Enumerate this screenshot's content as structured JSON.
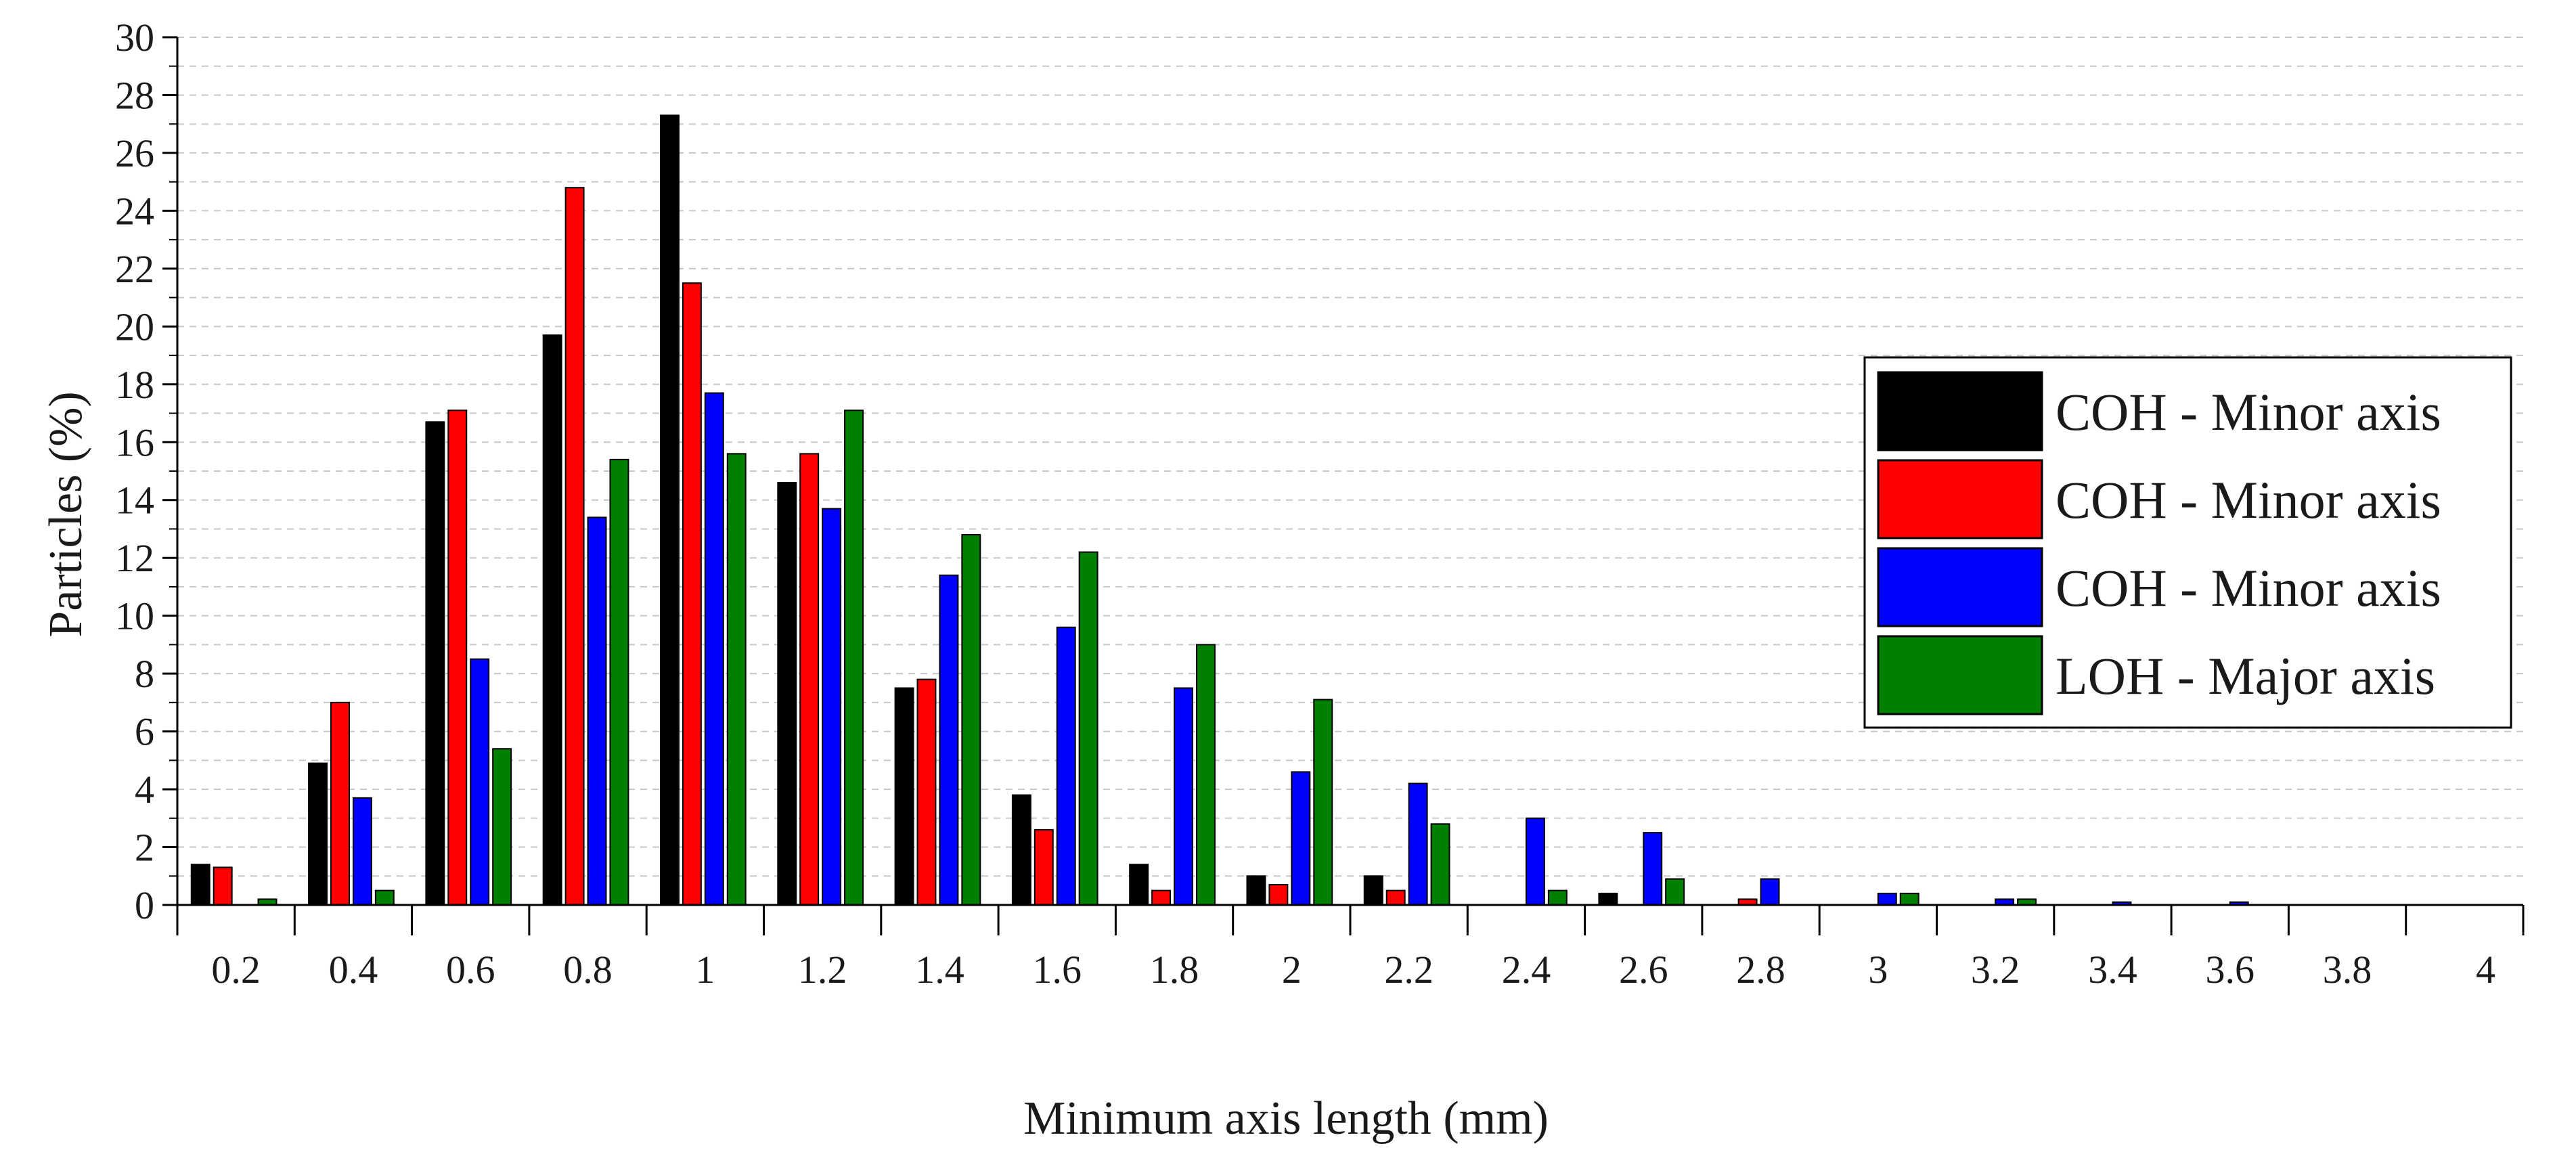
{
  "chart_data": {
    "type": "bar",
    "title": "",
    "xlabel": "Minimum axis length (mm)",
    "ylabel": "Particles (%)",
    "ylim": [
      0,
      30
    ],
    "yticks": [
      0,
      2,
      4,
      6,
      8,
      10,
      12,
      14,
      16,
      18,
      20,
      22,
      24,
      26,
      28,
      30
    ],
    "categories": [
      "0.2",
      "0.4",
      "0.6",
      "0.8",
      "1",
      "1.2",
      "1.4",
      "1.6",
      "1.8",
      "2",
      "2.2",
      "2.4",
      "2.6",
      "2.8",
      "3",
      "3.2",
      "3.4",
      "3.6",
      "3.8",
      "4"
    ],
    "grid": true,
    "legend_position": "right",
    "series": [
      {
        "name": "COH - Minor axis",
        "color": "#000000",
        "values": [
          1.4,
          4.9,
          16.7,
          19.7,
          27.3,
          14.6,
          7.5,
          3.8,
          1.4,
          1.0,
          1.0,
          0,
          0.4,
          0,
          0,
          0,
          0,
          0,
          0,
          0
        ]
      },
      {
        "name": "COH - Minor axis",
        "color": "#ff0000",
        "values": [
          1.3,
          7.0,
          17.1,
          24.8,
          21.5,
          15.6,
          7.8,
          2.6,
          0.5,
          0.7,
          0.5,
          0,
          0,
          0.2,
          0,
          0,
          0,
          0,
          0,
          0
        ]
      },
      {
        "name": "COH - Minor axis",
        "color": "#0000ff",
        "values": [
          0,
          3.7,
          8.5,
          13.4,
          17.7,
          13.7,
          11.4,
          9.6,
          7.5,
          4.6,
          4.2,
          3.0,
          2.5,
          0.9,
          0.4,
          0.2,
          0.1,
          0.1,
          0,
          0
        ]
      },
      {
        "name": "LOH - Major axis",
        "color": "#008000",
        "values": [
          0.2,
          0.5,
          5.4,
          15.4,
          15.6,
          17.1,
          12.8,
          12.2,
          9.0,
          7.1,
          2.8,
          0.5,
          0.9,
          0,
          0.4,
          0.2,
          0,
          0,
          0,
          0
        ]
      }
    ]
  }
}
